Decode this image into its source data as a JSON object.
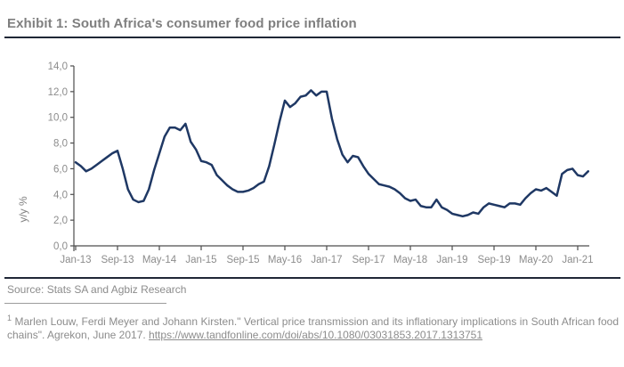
{
  "header": {
    "title": "Exhibit 1: South Africa's consumer food price inflation",
    "title_color": "#7f7f7f",
    "rule_color": "#1f2736"
  },
  "chart_data": {
    "type": "line",
    "title": "Exhibit 1: South Africa's consumer food price inflation",
    "xlabel": "",
    "ylabel": "y/y %",
    "ylim": [
      0,
      14
    ],
    "y_tick_step": 2,
    "y_tick_labels": [
      "0,0",
      "2,0",
      "4,0",
      "6,0",
      "8,0",
      "10,0",
      "12,0",
      "14,0"
    ],
    "x_tick_labels": [
      "Jan-13",
      "Sep-13",
      "May-14",
      "Jan-15",
      "Sep-15",
      "May-16",
      "Jan-17",
      "Sep-17",
      "May-18",
      "Jan-19",
      "Sep-19",
      "May-20",
      "Jan-21"
    ],
    "x_tick_interval_months": 8,
    "grid": "off",
    "legend": "none",
    "line_color": "#1f3864",
    "axis_color": "#4d4d4d",
    "tick_label_color": "#8c8c8c",
    "series": [
      {
        "name": "Consumer food price inflation (y/y %)",
        "frequency": "monthly",
        "start": "Jan-13",
        "end": "Mar-21",
        "values": [
          6.5,
          6.2,
          5.8,
          6.0,
          6.3,
          6.6,
          6.9,
          7.2,
          7.4,
          6.0,
          4.4,
          3.6,
          3.4,
          3.5,
          4.4,
          5.9,
          7.2,
          8.5,
          9.2,
          9.2,
          9.0,
          9.5,
          8.1,
          7.5,
          6.6,
          6.5,
          6.3,
          5.5,
          5.1,
          4.7,
          4.4,
          4.2,
          4.2,
          4.3,
          4.5,
          4.8,
          5.0,
          6.2,
          7.9,
          9.7,
          11.3,
          10.8,
          11.1,
          11.6,
          11.7,
          12.1,
          11.7,
          12.0,
          12.0,
          9.9,
          8.3,
          7.1,
          6.5,
          7.0,
          6.9,
          6.2,
          5.6,
          5.2,
          4.8,
          4.7,
          4.6,
          4.4,
          4.1,
          3.7,
          3.5,
          3.6,
          3.1,
          3.0,
          3.0,
          3.6,
          3.0,
          2.8,
          2.5,
          2.4,
          2.3,
          2.4,
          2.6,
          2.5,
          3.0,
          3.3,
          3.2,
          3.1,
          3.0,
          3.3,
          3.3,
          3.2,
          3.7,
          4.1,
          4.4,
          4.3,
          4.5,
          4.2,
          3.9,
          5.6,
          5.9,
          6.0,
          5.5,
          5.4,
          5.8
        ]
      }
    ]
  },
  "footer": {
    "source": "Source: Stats SA and Agbiz Research",
    "footnote_marker": "1",
    "footnote_text": " Marlen Louw, Ferdi Meyer and Johann Kirsten.\" Vertical price transmission and its inflationary implications in South African food chains\". Agrekon, June 2017. ",
    "footnote_url": "https://www.tandfonline.com/doi/abs/10.1080/03031853.2017.1313751"
  }
}
